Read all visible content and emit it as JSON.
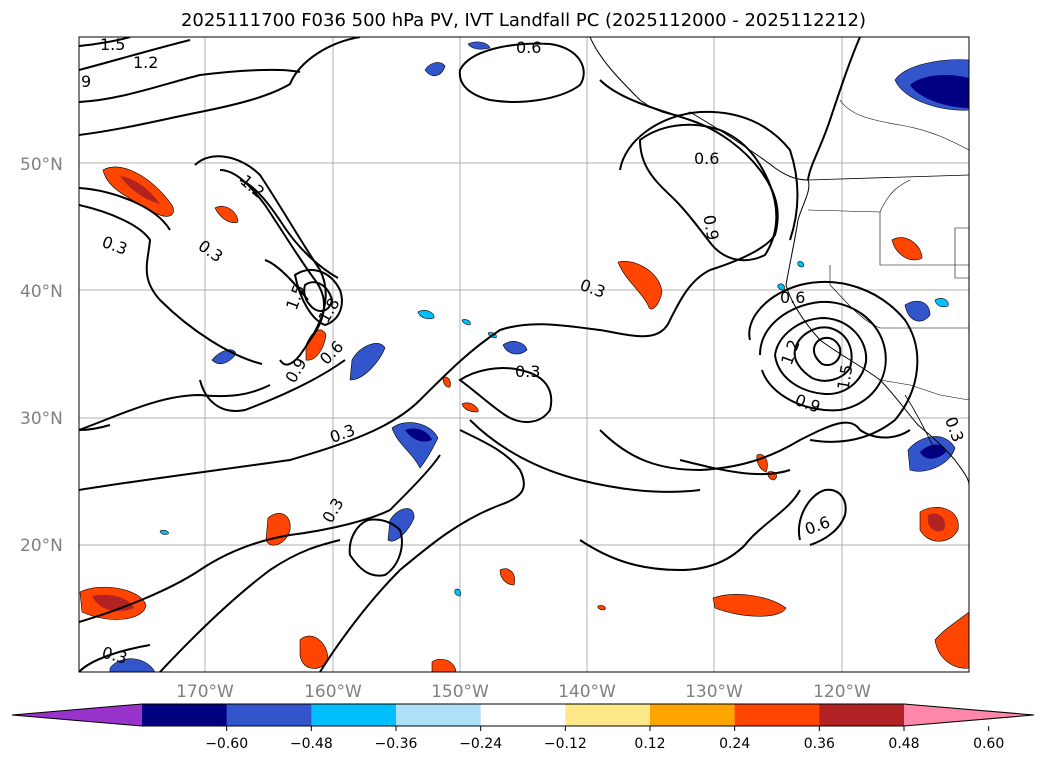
{
  "title": "2025111700 F036 500 hPa PV, IVT Landfall PC (2025112000 - 2025112212)",
  "lat_ticks": [
    {
      "label": "50°N",
      "value": 50
    },
    {
      "label": "40°N",
      "value": 40
    },
    {
      "label": "30°N",
      "value": 30
    },
    {
      "label": "20°N",
      "value": 20
    }
  ],
  "lon_ticks": [
    {
      "label": "170°W",
      "value": -170
    },
    {
      "label": "160°W",
      "value": -160
    },
    {
      "label": "150°W",
      "value": -150
    },
    {
      "label": "140°W",
      "value": -140
    },
    {
      "label": "130°W",
      "value": -130
    },
    {
      "label": "120°W",
      "value": -120
    }
  ],
  "colorbar": {
    "colors": [
      "#9933cc",
      "#000080",
      "#3355cc",
      "#00bfff",
      "#aee0f8",
      "#ffffff",
      "#ffe88a",
      "#ffa500",
      "#ff4500",
      "#b22222",
      "#ff88aa"
    ],
    "ticks": [
      "−0.60",
      "−0.48",
      "−0.36",
      "−0.24",
      "−0.12",
      "0.12",
      "0.24",
      "0.36",
      "0.48",
      "0.60"
    ]
  },
  "contour_labels": [
    "1.5",
    "1.2",
    "9",
    "0.6",
    "0.6",
    "1.2",
    "0.3",
    "0.3",
    "1.5",
    "1.8",
    "0.6",
    "0.9",
    "0.3",
    "0.3",
    "0.3",
    "0.9",
    "0.3",
    "0.6",
    "1.2",
    "1.5",
    "0.9",
    "0.3",
    "0.6",
    "0.3"
  ]
}
